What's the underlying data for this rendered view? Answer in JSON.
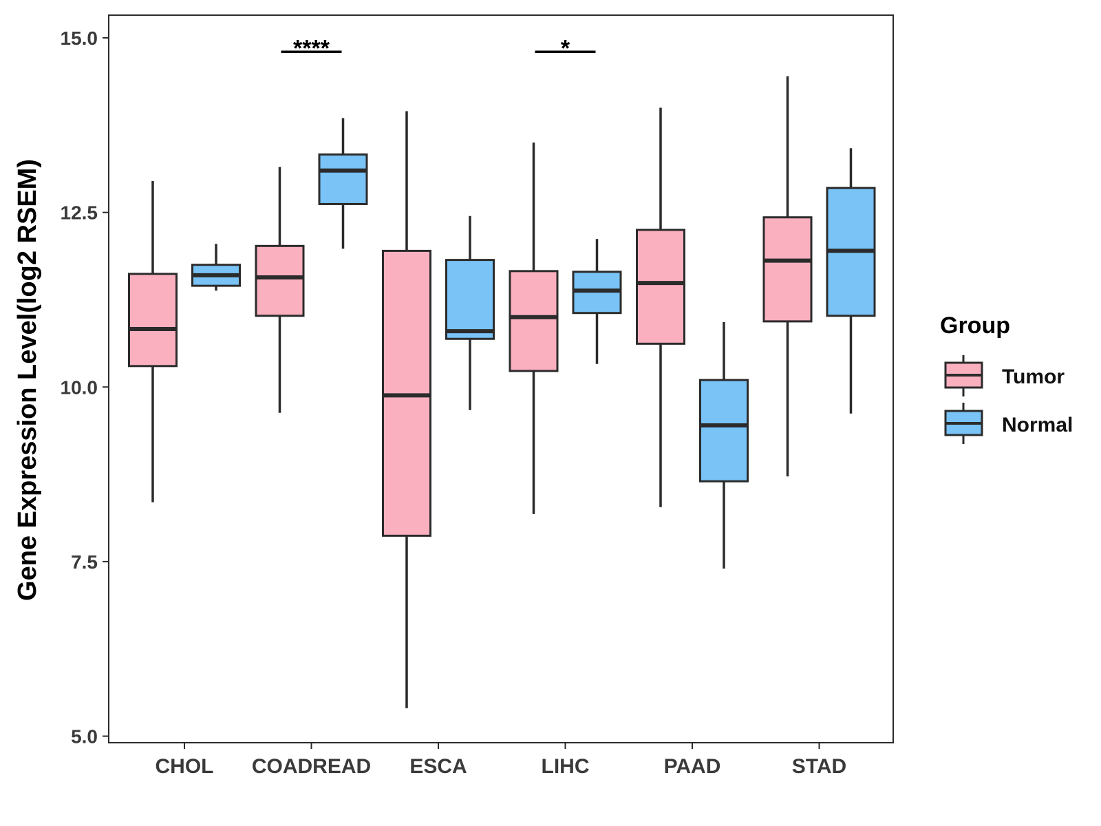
{
  "chart_data": {
    "type": "boxplot",
    "title": "",
    "xlabel": "",
    "ylabel": "Gene Expression Level(log2 RSEM)",
    "ylim": [
      4.9,
      15.3
    ],
    "yticks": [
      5.0,
      7.5,
      10.0,
      12.5,
      15.0
    ],
    "ytick_labels": [
      "5.0",
      "7.5",
      "10.0",
      "12.5",
      "15.0"
    ],
    "grid": false,
    "categories": [
      "CHOL",
      "COADREAD",
      "ESCA",
      "LIHC",
      "PAAD",
      "STAD"
    ],
    "legend": {
      "title": "Group",
      "position": "right",
      "entries": [
        {
          "name": "Tumor",
          "color": "#fbb0c0"
        },
        {
          "name": "Normal",
          "color": "#79c3f7"
        }
      ]
    },
    "series": [
      {
        "name": "Tumor",
        "color": "#fbb0c0",
        "boxes": [
          {
            "category": "CHOL",
            "min": 8.35,
            "q1": 10.3,
            "median": 10.83,
            "q3": 11.62,
            "max": 12.95
          },
          {
            "category": "COADREAD",
            "min": 9.63,
            "q1": 11.02,
            "median": 11.57,
            "q3": 12.02,
            "max": 13.15
          },
          {
            "category": "ESCA",
            "min": 5.4,
            "q1": 7.87,
            "median": 9.88,
            "q3": 11.95,
            "max": 13.95
          },
          {
            "category": "LIHC",
            "min": 8.18,
            "q1": 10.23,
            "median": 11.0,
            "q3": 11.66,
            "max": 13.5
          },
          {
            "category": "PAAD",
            "min": 8.28,
            "q1": 10.62,
            "median": 11.49,
            "q3": 12.25,
            "max": 14.0
          },
          {
            "category": "STAD",
            "min": 8.72,
            "q1": 10.94,
            "median": 11.81,
            "q3": 12.43,
            "max": 14.45
          }
        ]
      },
      {
        "name": "Normal",
        "color": "#79c3f7",
        "boxes": [
          {
            "category": "CHOL",
            "min": 11.38,
            "q1": 11.45,
            "median": 11.6,
            "q3": 11.75,
            "max": 12.05
          },
          {
            "category": "COADREAD",
            "min": 11.98,
            "q1": 12.62,
            "median": 13.1,
            "q3": 13.33,
            "max": 13.85
          },
          {
            "category": "ESCA",
            "min": 9.67,
            "q1": 10.69,
            "median": 10.8,
            "q3": 11.82,
            "max": 12.45
          },
          {
            "category": "LIHC",
            "min": 10.33,
            "q1": 11.06,
            "median": 11.38,
            "q3": 11.65,
            "max": 12.12
          },
          {
            "category": "PAAD",
            "min": 7.4,
            "q1": 8.65,
            "median": 9.45,
            "q3": 10.1,
            "max": 10.93
          },
          {
            "category": "STAD",
            "min": 9.62,
            "q1": 11.02,
            "median": 11.95,
            "q3": 12.85,
            "max": 13.42
          }
        ]
      }
    ],
    "annotations": [
      {
        "category": "COADREAD",
        "label": "****",
        "y": 14.8
      },
      {
        "category": "LIHC",
        "label": "*",
        "y": 14.8
      }
    ]
  }
}
